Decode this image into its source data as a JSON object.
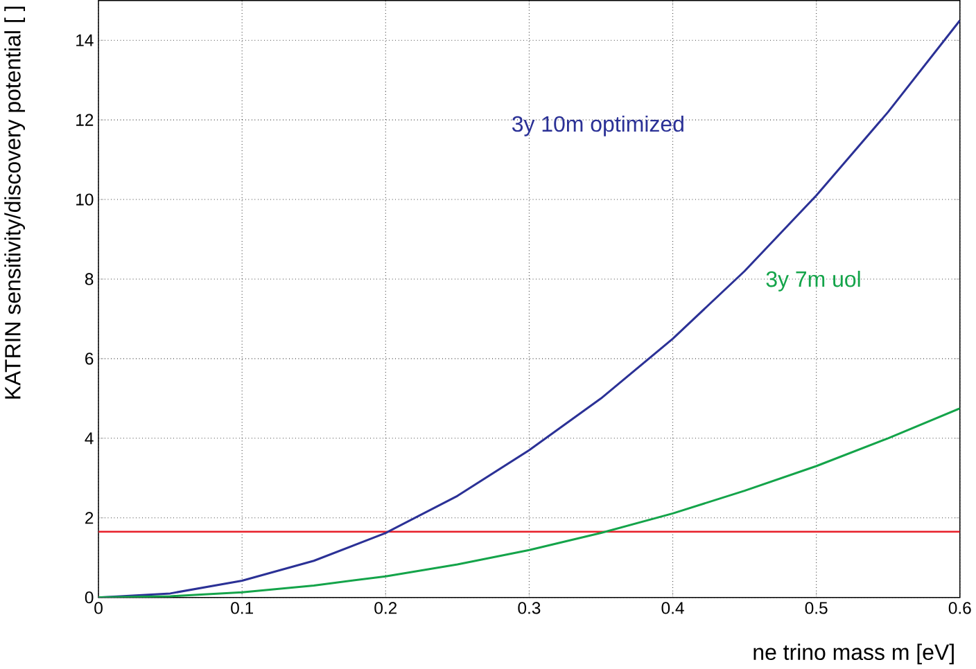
{
  "chart_data": {
    "type": "line",
    "xlabel": "ne  trino mass m [eV]",
    "ylabel": "KATRIN sensitivity/discovery potential [  ]",
    "xlim": [
      0,
      0.6
    ],
    "ylim": [
      0,
      15
    ],
    "xticks": [
      0,
      0.1,
      0.2,
      0.3,
      0.4,
      0.5,
      0.6
    ],
    "yticks": [
      0,
      2,
      4,
      6,
      8,
      10,
      12,
      14
    ],
    "grid": true,
    "line_style": "solid",
    "marker": "none",
    "x": [
      0,
      0.05,
      0.1,
      0.15,
      0.2,
      0.25,
      0.3,
      0.35,
      0.4,
      0.45,
      0.5,
      0.55,
      0.6
    ],
    "series": [
      {
        "name": "3y 10m optimized",
        "color": "#2b3196",
        "values": [
          0,
          0.1,
          0.42,
          0.92,
          1.62,
          2.55,
          3.7,
          5.0,
          6.5,
          8.2,
          10.1,
          12.2,
          14.5
        ]
      },
      {
        "name": "3y 7m uol",
        "color": "#14a44a",
        "values": [
          0,
          0.03,
          0.13,
          0.3,
          0.53,
          0.83,
          1.19,
          1.62,
          2.11,
          2.68,
          3.3,
          4.0,
          4.75
        ]
      }
    ],
    "ref_lines": [
      {
        "axis": "y",
        "value": 1.65,
        "color": "#e8202a"
      }
    ]
  }
}
